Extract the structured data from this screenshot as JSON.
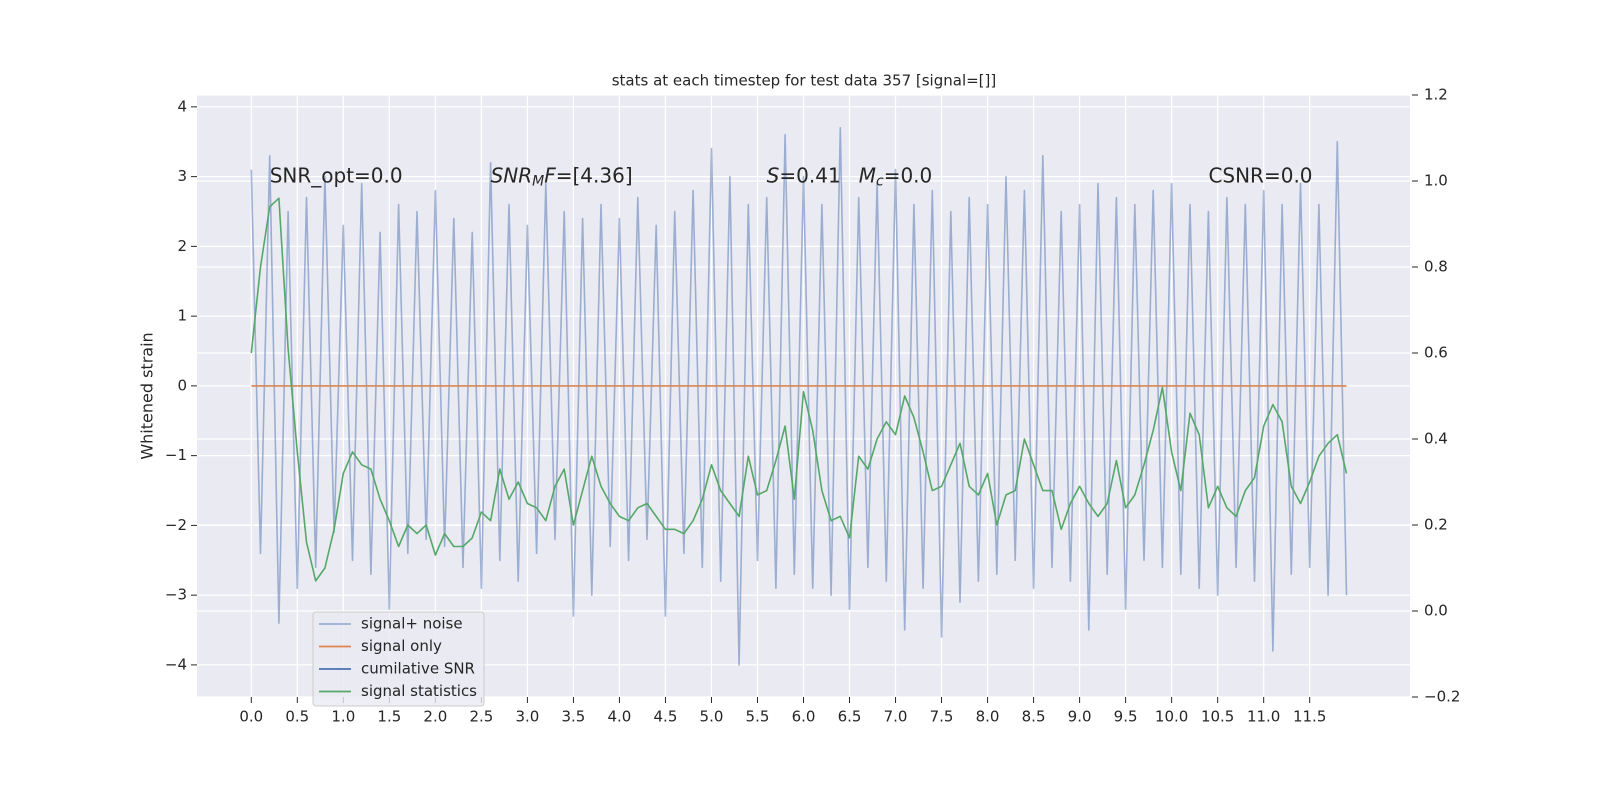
{
  "chart_data": {
    "type": "line",
    "title": "stats at each timestep for test data 357 [signal=[]]",
    "ylabel": "Whitened strain",
    "x": [
      0,
      0.1,
      0.2,
      0.3,
      0.4,
      0.5,
      0.6,
      0.7,
      0.8,
      0.9,
      1.0,
      1.1,
      1.2,
      1.3,
      1.4,
      1.5,
      1.6,
      1.7,
      1.8,
      1.9,
      2.0,
      2.1,
      2.2,
      2.3,
      2.4,
      2.5,
      2.6,
      2.7,
      2.8,
      2.9,
      3.0,
      3.1,
      3.2,
      3.3,
      3.4,
      3.5,
      3.6,
      3.7,
      3.8,
      3.9,
      4.0,
      4.1,
      4.2,
      4.3,
      4.4,
      4.5,
      4.6,
      4.7,
      4.8,
      4.9,
      5.0,
      5.1,
      5.2,
      5.3,
      5.4,
      5.5,
      5.6,
      5.7,
      5.8,
      5.9,
      6.0,
      6.1,
      6.2,
      6.3,
      6.4,
      6.5,
      6.6,
      6.7,
      6.8,
      6.9,
      7.0,
      7.1,
      7.2,
      7.3,
      7.4,
      7.5,
      7.6,
      7.7,
      7.8,
      7.9,
      8.0,
      8.1,
      8.2,
      8.3,
      8.4,
      8.5,
      8.6,
      8.7,
      8.8,
      8.9,
      9.0,
      9.1,
      9.2,
      9.3,
      9.4,
      9.5,
      9.6,
      9.7,
      9.8,
      9.9,
      10.0,
      10.1,
      10.2,
      10.3,
      10.4,
      10.5,
      10.6,
      10.7,
      10.8,
      10.9,
      11.0,
      11.1,
      11.2,
      11.3,
      11.4,
      11.5,
      11.6,
      11.7,
      11.8,
      11.9
    ],
    "series": [
      {
        "name": "signal+ noise",
        "color": "#4c72b0",
        "alpha": 0.5,
        "values": [
          3.1,
          -2.4,
          3.3,
          -3.4,
          2.5,
          -2.9,
          2.7,
          -2.6,
          3.0,
          -2.1,
          2.3,
          -2.5,
          2.9,
          -2.7,
          2.2,
          -3.2,
          2.6,
          -2.4,
          2.5,
          -2.2,
          2.8,
          -2.3,
          2.4,
          -2.6,
          2.2,
          -2.9,
          3.2,
          -2.5,
          2.6,
          -2.8,
          2.3,
          -2.4,
          2.9,
          -2.2,
          2.5,
          -3.3,
          2.4,
          -3.0,
          2.6,
          -2.3,
          2.4,
          -2.5,
          2.7,
          -2.2,
          2.3,
          -3.3,
          2.5,
          -2.4,
          2.8,
          -2.6,
          3.4,
          -2.8,
          3.0,
          -4.0,
          2.6,
          -2.5,
          2.7,
          -2.9,
          3.6,
          -2.7,
          3.0,
          -2.9,
          2.6,
          -3.0,
          3.7,
          -3.2,
          2.7,
          -2.6,
          2.9,
          -2.8,
          3.1,
          -3.5,
          2.6,
          -2.9,
          2.8,
          -3.6,
          2.5,
          -3.1,
          2.7,
          -2.8,
          2.6,
          -2.7,
          3.0,
          -2.5,
          2.8,
          -2.9,
          3.3,
          -2.6,
          2.5,
          -2.8,
          2.6,
          -3.5,
          2.9,
          -2.7,
          2.7,
          -3.2,
          2.6,
          -2.5,
          2.8,
          -2.6,
          2.9,
          -2.7,
          2.6,
          -2.9,
          2.5,
          -3.0,
          2.7,
          -2.6,
          2.6,
          -2.8,
          2.8,
          -3.8,
          2.6,
          -2.7,
          2.9,
          -2.6,
          2.6,
          -3.0,
          3.5,
          -3.0
        ]
      },
      {
        "name": "signal only",
        "color": "#dd8452",
        "values": [
          0,
          0,
          0,
          0,
          0,
          0,
          0,
          0,
          0,
          0,
          0,
          0,
          0,
          0,
          0,
          0,
          0,
          0,
          0,
          0,
          0,
          0,
          0,
          0,
          0,
          0,
          0,
          0,
          0,
          0,
          0,
          0,
          0,
          0,
          0,
          0,
          0,
          0,
          0,
          0,
          0,
          0,
          0,
          0,
          0,
          0,
          0,
          0,
          0,
          0,
          0,
          0,
          0,
          0,
          0,
          0,
          0,
          0,
          0,
          0,
          0,
          0,
          0,
          0,
          0,
          0,
          0,
          0,
          0,
          0,
          0,
          0,
          0,
          0,
          0,
          0,
          0,
          0,
          0,
          0,
          0,
          0,
          0,
          0,
          0,
          0,
          0,
          0,
          0,
          0,
          0,
          0,
          0,
          0,
          0,
          0,
          0,
          0,
          0,
          0,
          0,
          0,
          0,
          0,
          0,
          0,
          0,
          0,
          0,
          0,
          0,
          0,
          0,
          0,
          0,
          0,
          0,
          0,
          0,
          0
        ]
      },
      {
        "name": "cumilative SNR",
        "color": "#4c72b0",
        "axis": "y2",
        "values": [
          null,
          null,
          null,
          null,
          null,
          null,
          null,
          null,
          null,
          null,
          null,
          null,
          null,
          null,
          null,
          null,
          null,
          null,
          null,
          null,
          null,
          null,
          null,
          null,
          null,
          null,
          null,
          null,
          null,
          null,
          null,
          null,
          null,
          null,
          null,
          null,
          null,
          null,
          null,
          null,
          null,
          null,
          null,
          null,
          null,
          null,
          null,
          null,
          null,
          null,
          null,
          null,
          null,
          null,
          null,
          null,
          null,
          null,
          null,
          null,
          null,
          null,
          null,
          null,
          null,
          null,
          null,
          null,
          null,
          null,
          null,
          null,
          null,
          null,
          null,
          null,
          null,
          null,
          null,
          null,
          null,
          null,
          null,
          null,
          null,
          null,
          null,
          null,
          null,
          null,
          null,
          null,
          null,
          null,
          null,
          null,
          null,
          null,
          null,
          null,
          null,
          null,
          null,
          null,
          null,
          null,
          null,
          null,
          null,
          null,
          null,
          null,
          null,
          null,
          null,
          null,
          null,
          null,
          null,
          null
        ]
      },
      {
        "name": "signal statistics",
        "color": "#55a868",
        "axis": "y2",
        "values": [
          0.6,
          0.8,
          0.94,
          0.96,
          0.61,
          0.37,
          0.16,
          0.07,
          0.1,
          0.19,
          0.32,
          0.37,
          0.34,
          0.33,
          0.26,
          0.21,
          0.15,
          0.2,
          0.18,
          0.2,
          0.13,
          0.18,
          0.15,
          0.15,
          0.17,
          0.23,
          0.21,
          0.33,
          0.26,
          0.3,
          0.25,
          0.24,
          0.21,
          0.29,
          0.33,
          0.2,
          0.28,
          0.36,
          0.29,
          0.25,
          0.22,
          0.21,
          0.24,
          0.25,
          0.22,
          0.19,
          0.19,
          0.18,
          0.21,
          0.26,
          0.34,
          0.28,
          0.25,
          0.22,
          0.36,
          0.27,
          0.28,
          0.35,
          0.43,
          0.26,
          0.51,
          0.42,
          0.28,
          0.21,
          0.22,
          0.17,
          0.36,
          0.33,
          0.4,
          0.44,
          0.41,
          0.5,
          0.45,
          0.37,
          0.28,
          0.29,
          0.34,
          0.39,
          0.29,
          0.27,
          0.32,
          0.2,
          0.27,
          0.28,
          0.4,
          0.34,
          0.28,
          0.28,
          0.19,
          0.25,
          0.29,
          0.25,
          0.22,
          0.25,
          0.35,
          0.24,
          0.27,
          0.34,
          0.42,
          0.52,
          0.37,
          0.28,
          0.46,
          0.41,
          0.24,
          0.29,
          0.24,
          0.22,
          0.28,
          0.31,
          0.43,
          0.48,
          0.44,
          0.29,
          0.25,
          0.3,
          0.36,
          0.39,
          0.41,
          0.32
        ]
      }
    ],
    "xlim": [
      -0.59,
      12.59
    ],
    "ylim": [
      -4.46,
      4.17
    ],
    "y2lim": [
      -0.2,
      1.2
    ],
    "xticks": [
      {
        "value": 0,
        "label": "0.0"
      },
      0.5,
      {
        "value": 1,
        "label": "1.0"
      },
      1.5,
      {
        "value": 2,
        "label": "2.0"
      },
      2.5,
      {
        "value": 3,
        "label": "3.0"
      },
      3.5,
      {
        "value": 4,
        "label": "4.0"
      },
      4.5,
      {
        "value": 5,
        "label": "5.0"
      },
      5.5,
      {
        "value": 6,
        "label": "6.0"
      },
      6.5,
      {
        "value": 7,
        "label": "7.0"
      },
      7.5,
      {
        "value": 8,
        "label": "8.0"
      },
      8.5,
      {
        "value": 9,
        "label": "9.0"
      },
      9.5,
      {
        "value": 10,
        "label": "10.0"
      },
      10.5,
      {
        "value": 11,
        "label": "11.0"
      },
      11.5
    ],
    "yticks": [
      {
        "value": -4,
        "label": "−4"
      },
      {
        "value": -3,
        "label": "−3"
      },
      {
        "value": -2,
        "label": "−2"
      },
      {
        "value": -1,
        "label": "−1"
      },
      0,
      1,
      2,
      3,
      4
    ],
    "y2ticks": [
      {
        "value": -0.2,
        "label": "−0.2"
      },
      {
        "value": 0,
        "label": "0.0"
      },
      0.2,
      0.4,
      0.6,
      0.8,
      {
        "value": 1,
        "label": "1.0"
      },
      1.2
    ],
    "grid": true,
    "legend": "lower left",
    "annotations": [
      {
        "x": 0.2,
        "y": 3,
        "parts": [
          {
            "text": "SNR_opt=0.0"
          }
        ]
      },
      {
        "x": 2.6,
        "y": 3,
        "parts": [
          {
            "text": "SNR",
            "italic": true
          },
          {
            "text": "M",
            "italic": true,
            "sub": true
          },
          {
            "text": "F",
            "italic": true
          },
          {
            "text": "=[4.36]"
          }
        ]
      },
      {
        "x": 5.6,
        "y": 3,
        "parts": [
          {
            "text": "S",
            "italic": true
          },
          {
            "text": "=0.41"
          }
        ]
      },
      {
        "x": 6.6,
        "y": 3,
        "parts": [
          {
            "text": "M",
            "italic": true
          },
          {
            "text": "c",
            "italic": true,
            "sub": true
          },
          {
            "text": "=0.0"
          }
        ]
      },
      {
        "x": 10.4,
        "y": 3,
        "parts": [
          {
            "text": "CSNR=0.0"
          }
        ]
      }
    ]
  }
}
